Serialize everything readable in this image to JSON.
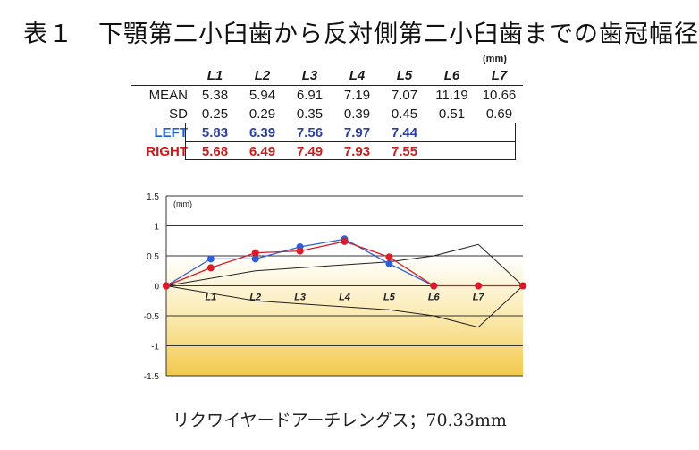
{
  "title": "表１　下顎第二小臼歯から反対側第二小臼歯までの歯冠幅径",
  "table": {
    "unit": "(mm)",
    "columns": [
      "L1",
      "L2",
      "L3",
      "L4",
      "L5",
      "L6",
      "L7"
    ],
    "rows": [
      {
        "label": "MEAN",
        "values": [
          "5.38",
          "5.94",
          "6.91",
          "7.19",
          "7.07",
          "11.19",
          "10.66"
        ]
      },
      {
        "label": "SD",
        "values": [
          "0.25",
          "0.29",
          "0.35",
          "0.39",
          "0.45",
          "0.51",
          "0.69"
        ]
      },
      {
        "label": "LEFT",
        "values": [
          "5.83",
          "6.39",
          "7.56",
          "7.97",
          "7.44",
          "",
          ""
        ]
      },
      {
        "label": "RIGHT",
        "values": [
          "5.68",
          "6.49",
          "7.49",
          "7.93",
          "7.55",
          "",
          ""
        ]
      }
    ]
  },
  "chart_data": {
    "type": "line",
    "unit_label": "(mm)",
    "x_categories": [
      "",
      "L1",
      "L2",
      "L3",
      "L4",
      "L5",
      "L6",
      "L7",
      ""
    ],
    "ylim": [
      -1.5,
      1.5
    ],
    "yticks": [
      "1.5",
      "1",
      "0.5",
      "0",
      "-0.5",
      "-1",
      "-1.5"
    ],
    "grid": true,
    "sd_band_upper": [
      0,
      0.125,
      0.25,
      0.3,
      0.35,
      0.4,
      0.5,
      0.69,
      0
    ],
    "sd_band_lower": [
      0,
      -0.125,
      -0.25,
      -0.3,
      -0.35,
      -0.4,
      -0.5,
      -0.69,
      0
    ],
    "series": [
      {
        "name": "LEFT",
        "color": "#2f5fd8",
        "values": [
          0,
          0.45,
          0.45,
          0.65,
          0.78,
          0.37,
          0,
          null,
          null
        ]
      },
      {
        "name": "RIGHT",
        "color": "#d81c2a",
        "values": [
          0,
          0.3,
          0.55,
          0.58,
          0.74,
          0.48,
          0,
          0,
          0
        ]
      }
    ],
    "band_color": "#222222",
    "background_gradient": [
      "#ffffff",
      "#f5d060"
    ]
  },
  "caption": "リクワイヤードアーチレングス；70.33mm"
}
